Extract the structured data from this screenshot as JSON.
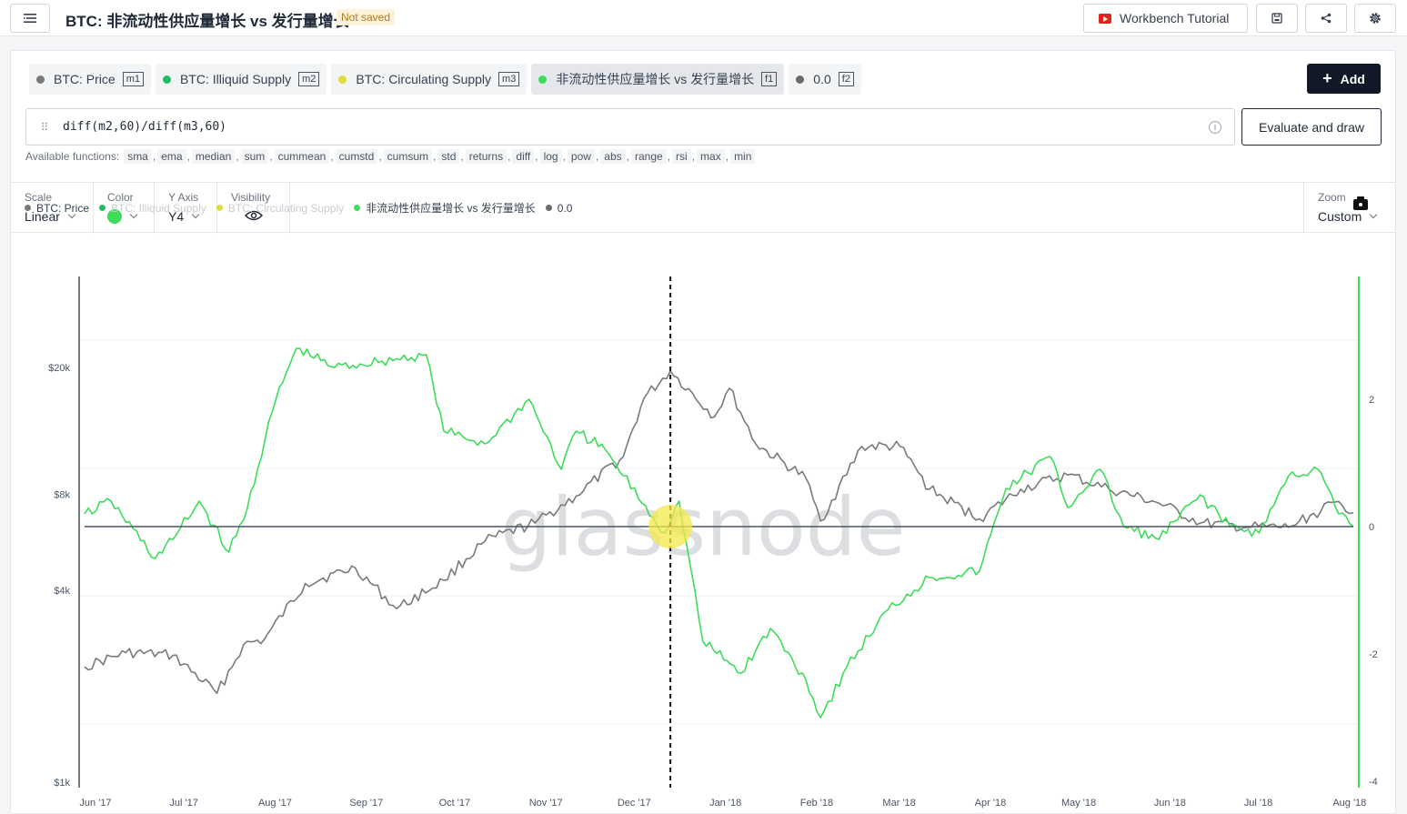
{
  "header": {
    "title": "BTC: 非流动性供应量增长 vs 发行量增长",
    "status_badge": "Not saved",
    "tutorial_label": "Workbench Tutorial"
  },
  "metric_tabs": [
    {
      "label": "BTC: Price",
      "key": "m1",
      "color": "#7a7a7a"
    },
    {
      "label": "BTC: Illiquid Supply",
      "key": "m2",
      "color": "#1fbf5f"
    },
    {
      "label": "BTC: Circulating Supply",
      "key": "m3",
      "color": "#e0dc3a"
    },
    {
      "label": "非流动性供应量增长 vs 发行量增长",
      "key": "f1",
      "color": "#3ddc5a"
    },
    {
      "label": "0.0",
      "key": "f2",
      "color": "#6b6b6b"
    }
  ],
  "add_label": "Add",
  "formula": {
    "value": "diff(m2,60)/diff(m3,60)",
    "evaluate_label": "Evaluate and draw"
  },
  "functions": {
    "label": "Available functions:",
    "items": [
      "sma",
      "ema",
      "median",
      "sum",
      "cummean",
      "cumstd",
      "cumsum",
      "std",
      "returns",
      "diff",
      "log",
      "pow",
      "abs",
      "range",
      "rsi",
      "max",
      "min"
    ]
  },
  "controls": {
    "scale": {
      "label": "Scale",
      "value": "Linear"
    },
    "color": {
      "label": "Color",
      "value": "#3ddc5a"
    },
    "yaxis": {
      "label": "Y Axis",
      "value": "Y4"
    },
    "visibility": {
      "label": "Visibility"
    },
    "zoom": {
      "label": "Zoom",
      "value": "Custom"
    }
  },
  "watermark": "glassnode",
  "chart_data": {
    "type": "line",
    "legend": [
      {
        "name": "BTC: Price",
        "color": "#7a7a7a",
        "visible": true
      },
      {
        "name": "BTC: Illiquid Supply",
        "color": "#1fbf5f",
        "visible": false
      },
      {
        "name": "BTC: Circulating Supply",
        "color": "#e0dc3a",
        "visible": false
      },
      {
        "name": "非流动性供应量增长 vs 发行量增长",
        "color": "#3ddc5a",
        "visible": true
      },
      {
        "name": "0.0",
        "color": "#6b6b6b",
        "visible": true
      }
    ],
    "x_ticks": [
      "Jun '17",
      "Jul '17",
      "Aug '17",
      "Sep '17",
      "Oct '17",
      "Nov '17",
      "Dec '17",
      "Jan '18",
      "Feb '18",
      "Mar '18",
      "Apr '18",
      "May '18",
      "Jun '18",
      "Jul '18",
      "Aug '18"
    ],
    "left_axis": {
      "scale": "log",
      "ticks": [
        {
          "label": "$1k",
          "value": 1000
        },
        {
          "label": "$4k",
          "value": 4000
        },
        {
          "label": "$8k",
          "value": 8000
        },
        {
          "label": "$20k",
          "value": 20000
        }
      ]
    },
    "right_axis": {
      "scale": "linear",
      "range": [
        -4,
        4
      ],
      "ticks": [
        2,
        0,
        -2,
        -4
      ]
    },
    "crosshair_date": "2017-12-17",
    "series": [
      {
        "name": "BTC: Price",
        "axis": "left",
        "color": "#7a7a7a",
        "x": [
          "2017-06-01",
          "2017-06-15",
          "2017-07-01",
          "2017-07-16",
          "2017-07-25",
          "2017-08-01",
          "2017-08-15",
          "2017-09-01",
          "2017-09-15",
          "2017-10-01",
          "2017-10-15",
          "2017-11-01",
          "2017-11-15",
          "2017-12-01",
          "2017-12-08",
          "2017-12-17",
          "2018-01-01",
          "2018-01-06",
          "2018-01-15",
          "2018-02-01",
          "2018-02-06",
          "2018-02-20",
          "2018-03-05",
          "2018-03-15",
          "2018-04-01",
          "2018-04-15",
          "2018-05-01",
          "2018-05-15",
          "2018-06-01",
          "2018-06-15",
          "2018-07-01",
          "2018-07-15",
          "2018-08-01",
          "2018-08-06"
        ],
        "values": [
          2300,
          2550,
          2500,
          1900,
          2700,
          2800,
          4200,
          4700,
          3500,
          4300,
          5700,
          6500,
          7900,
          10500,
          16000,
          19500,
          14000,
          17200,
          11500,
          9000,
          6600,
          11300,
          11300,
          8300,
          6700,
          8300,
          9200,
          8300,
          7500,
          6500,
          6300,
          6300,
          7600,
          7000
        ]
      },
      {
        "name": "非流动性供应量增长 vs 发行量增长",
        "axis": "right",
        "color": "#3ddc5a",
        "x": [
          "2017-06-01",
          "2017-06-10",
          "2017-06-25",
          "2017-07-01",
          "2017-07-10",
          "2017-07-20",
          "2017-07-25",
          "2017-08-05",
          "2017-08-12",
          "2017-08-25",
          "2017-09-10",
          "2017-09-25",
          "2017-10-01",
          "2017-10-15",
          "2017-10-30",
          "2017-11-10",
          "2017-11-15",
          "2017-11-25",
          "2017-12-01",
          "2017-12-15",
          "2017-12-20",
          "2017-12-28",
          "2018-01-10",
          "2018-01-20",
          "2018-02-01",
          "2018-02-06",
          "2018-02-15",
          "2018-03-01",
          "2018-03-15",
          "2018-04-01",
          "2018-04-10",
          "2018-04-25",
          "2018-05-01",
          "2018-05-12",
          "2018-05-20",
          "2018-06-01",
          "2018-06-15",
          "2018-06-25",
          "2018-07-05",
          "2018-07-15",
          "2018-07-25",
          "2018-08-01",
          "2018-08-06"
        ],
        "values": [
          0.2,
          0.4,
          -0.5,
          -0.2,
          0.4,
          -0.4,
          0.1,
          2.0,
          2.8,
          2.5,
          2.6,
          2.7,
          1.5,
          1.3,
          2.0,
          0.9,
          1.5,
          1.2,
          0.8,
          -0.1,
          0.4,
          -1.8,
          -2.3,
          -1.6,
          -2.4,
          -3.0,
          -2.2,
          -1.3,
          -0.8,
          -0.7,
          0.6,
          1.1,
          0.3,
          0.9,
          0.0,
          -0.2,
          0.5,
          0.0,
          -0.1,
          0.8,
          0.9,
          0.2,
          0.0
        ]
      },
      {
        "name": "0.0",
        "axis": "right",
        "color": "#4b5563",
        "x": [
          "2017-06-01",
          "2018-08-06"
        ],
        "values": [
          0,
          0
        ]
      }
    ]
  }
}
